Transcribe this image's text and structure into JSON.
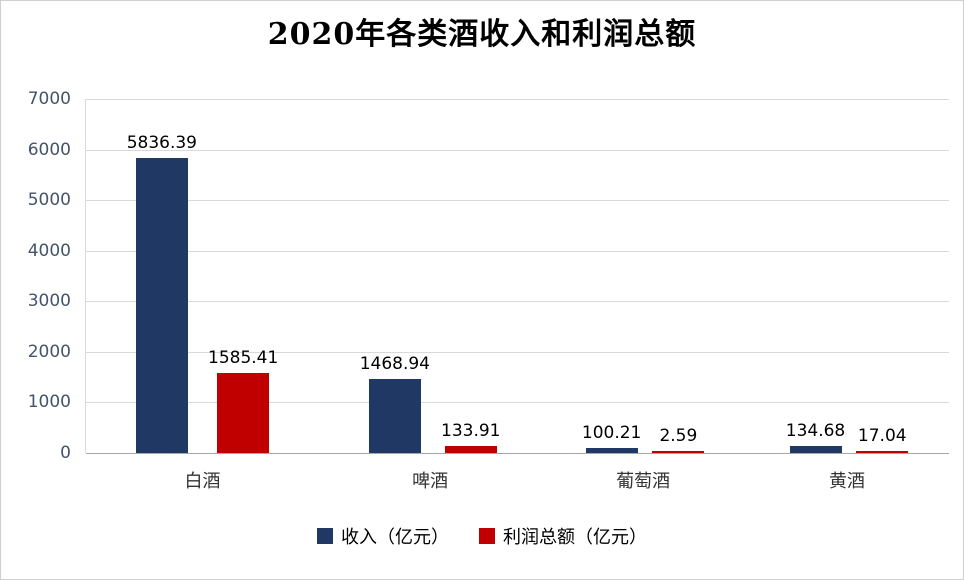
{
  "chart_data": {
    "type": "bar",
    "title": "2020年各类酒收入和利润总额",
    "categories": [
      "白酒",
      "啤酒",
      "葡萄酒",
      "黄酒"
    ],
    "series": [
      {
        "name": "收入（亿元）",
        "color": "#1f3864",
        "values": [
          5836.39,
          1468.94,
          100.21,
          134.68
        ]
      },
      {
        "name": "利润总额（亿元）",
        "color": "#c00000",
        "values": [
          1585.41,
          133.91,
          2.59,
          17.04
        ]
      }
    ],
    "ylim": [
      0,
      7000
    ],
    "ytick_step": 1000,
    "yticks": [
      "0",
      "1000",
      "2000",
      "3000",
      "4000",
      "5000",
      "6000",
      "7000"
    ],
    "grid": true,
    "value_labels_shown": true,
    "legend_position": "bottom"
  },
  "styles": {
    "grid_color": "#d9d9d9",
    "axis_line_color": "#a6a6a6",
    "tick_label_color": "#44546a",
    "revenue_color": "#1f3864",
    "profit_color": "#c00000"
  }
}
